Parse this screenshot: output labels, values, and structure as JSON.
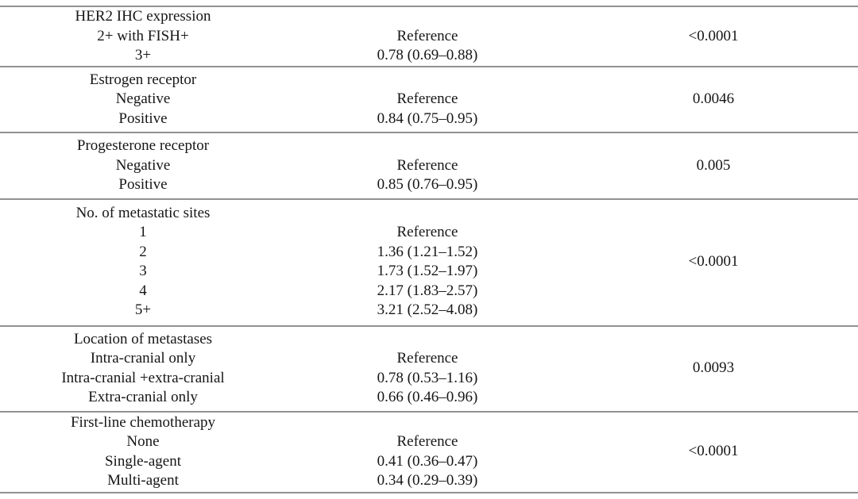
{
  "table": {
    "rule_color": "#919191",
    "sections": [
      {
        "header": "HER2 IHC expression",
        "rows": [
          {
            "label": "2+ with FISH+",
            "value": "Reference"
          },
          {
            "label": "3+",
            "value": "0.78 (0.69–0.88)"
          }
        ],
        "p_value": "<0.0001"
      },
      {
        "header": "Estrogen receptor",
        "rows": [
          {
            "label": "Negative",
            "value": "Reference"
          },
          {
            "label": "Positive",
            "value": "0.84 (0.75–0.95)"
          }
        ],
        "p_value": "0.0046"
      },
      {
        "header": "Progesterone receptor",
        "rows": [
          {
            "label": "Negative",
            "value": "Reference"
          },
          {
            "label": "Positive",
            "value": "0.85 (0.76–0.95)"
          }
        ],
        "p_value": "0.005"
      },
      {
        "header": "No. of metastatic sites",
        "rows": [
          {
            "label": "1",
            "value": "Reference"
          },
          {
            "label": "2",
            "value": "1.36 (1.21–1.52)"
          },
          {
            "label": "3",
            "value": "1.73 (1.52–1.97)"
          },
          {
            "label": "4",
            "value": "2.17 (1.83–2.57)"
          },
          {
            "label": "5+",
            "value": "3.21 (2.52–4.08)"
          }
        ],
        "p_value": "<0.0001"
      },
      {
        "header": "Location of metastases",
        "rows": [
          {
            "label": "Intra-cranial only",
            "value": "Reference"
          },
          {
            "label": "Intra-cranial +extra-cranial",
            "value": "0.78 (0.53–1.16)"
          },
          {
            "label": "Extra-cranial only",
            "value": "0.66 (0.46–0.96)"
          }
        ],
        "p_value": "0.0093"
      },
      {
        "header": "First-line chemotherapy",
        "rows": [
          {
            "label": "None",
            "value": "Reference"
          },
          {
            "label": "Single-agent",
            "value": "0.41 (0.36–0.47)"
          },
          {
            "label": "Multi-agent",
            "value": "0.34 (0.29–0.39)"
          }
        ],
        "p_value": "<0.0001"
      }
    ]
  }
}
